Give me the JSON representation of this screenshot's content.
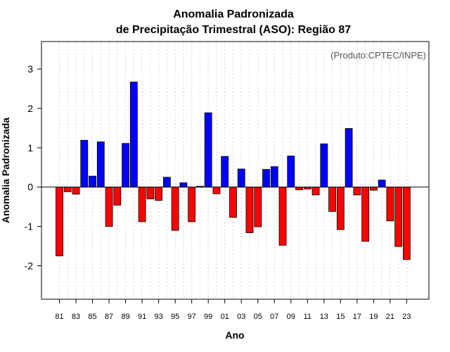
{
  "chart_data": {
    "type": "bar",
    "title_line1": "Anomalia Padronizada",
    "title_line2": "de Precipitação Trimestral (ASO): Região 87",
    "xlabel": "Ano",
    "ylabel": "Anomalia Padronizada",
    "credit": "(Produto:CPTEC/INPE)",
    "ylim": [
      -2.85,
      3.7
    ],
    "yticks": [
      -2,
      -1,
      0,
      1,
      2,
      3
    ],
    "ytick_labels": [
      "-2",
      "-1",
      "0",
      "1",
      "2",
      "3"
    ],
    "xtick_labels": [
      "81",
      "83",
      "85",
      "87",
      "89",
      "91",
      "93",
      "95",
      "97",
      "99",
      "01",
      "03",
      "05",
      "07",
      "09",
      "11",
      "13",
      "15",
      "17",
      "19",
      "21",
      "23"
    ],
    "positive_color": "#0000ff",
    "negative_color": "#ff0000",
    "categories": [
      "1981",
      "1982",
      "1983",
      "1984",
      "1985",
      "1986",
      "1987",
      "1988",
      "1989",
      "1990",
      "1991",
      "1992",
      "1993",
      "1994",
      "1995",
      "1996",
      "1997",
      "1998",
      "1999",
      "2000",
      "2001",
      "2002",
      "2003",
      "2004",
      "2005",
      "2006",
      "2007",
      "2008",
      "2009",
      "2010",
      "2011",
      "2012",
      "2013",
      "2014",
      "2015",
      "2016",
      "2017",
      "2018",
      "2019",
      "2020",
      "2021",
      "2022",
      "2023"
    ],
    "values": [
      -1.75,
      -0.12,
      -0.18,
      1.19,
      0.28,
      1.15,
      -1.0,
      -0.46,
      1.11,
      2.67,
      -0.88,
      -0.3,
      -0.34,
      0.25,
      -1.1,
      0.11,
      -0.88,
      0.02,
      1.89,
      -0.17,
      0.78,
      -0.77,
      0.46,
      -1.16,
      -1.01,
      0.45,
      0.52,
      -1.48,
      0.79,
      -0.07,
      -0.05,
      -0.2,
      1.1,
      -0.62,
      -1.08,
      1.49,
      -0.2,
      -1.38,
      -0.08,
      0.18,
      -0.86,
      -1.51,
      -1.84
    ]
  }
}
